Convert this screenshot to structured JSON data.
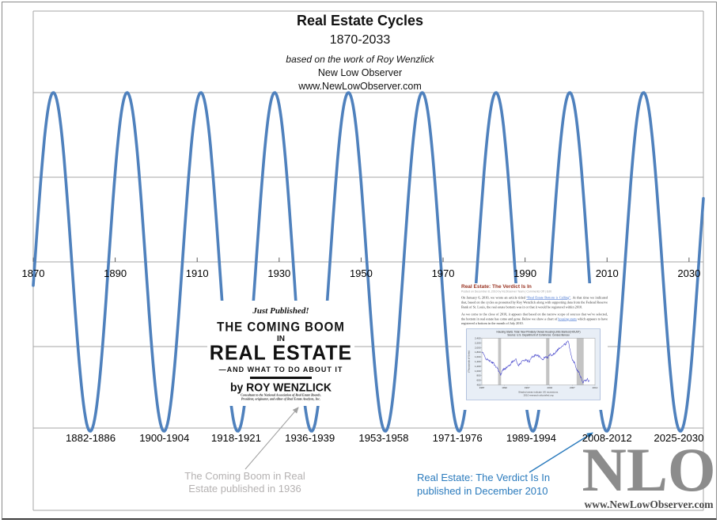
{
  "header": {
    "title": "Real Estate Cycles",
    "subtitle": "1870-2033",
    "attribution": "based on the work of Roy Wenzlick",
    "site_name": "New Low Observer",
    "site_url": "www.NewLowObserver.com"
  },
  "chart_data": [
    {
      "type": "line",
      "title": "Real Estate Cycles 1870-2033",
      "description": "Idealized ~18-year real estate cycle drawn as a sine wave",
      "x_range": [
        1870,
        2033.5
      ],
      "y_range": [
        -1.5,
        1.5
      ],
      "grid": "horizontal gridlines every 0.5, no vertical gridlines",
      "legend_position": "none",
      "wave": {
        "shape": "sine",
        "period_years": 18,
        "amplitude": 1,
        "upward_zero_crossing_year": 1870.4
      },
      "x_ticks": [
        "1870",
        "1890",
        "1910",
        "1930",
        "1950",
        "1970",
        "1990",
        "2010",
        "2030"
      ],
      "trough_labels": [
        "1882-1886",
        "1900-1904",
        "1918-1921",
        "1936-1939",
        "1953-1958",
        "1971-1976",
        "1989-1994",
        "2008-2012",
        "2025-2030"
      ],
      "trough_center_years": [
        1884,
        1902,
        1919.5,
        1937.5,
        1955.5,
        1973.5,
        1991.5,
        2010,
        2027.5
      ],
      "line_color": "#4f81bd"
    },
    {
      "type": "line",
      "title": "Housing Starts: Total: New Privately Owned Housing Units Started (HOUST)",
      "subtitle": "Source: U.S. Department of Commerce: Census Bureau",
      "ylabel": "(Thousands of Units)",
      "ylim": [
        400,
        2400
      ],
      "y_tick_step": 200,
      "x_ticks": [
        1987,
        1992,
        1997,
        2002,
        2007,
        2012
      ],
      "x": [
        1987,
        1987.5,
        1988,
        1988.5,
        1989,
        1989.5,
        1990,
        1990.5,
        1991.17,
        1991.5,
        1992,
        1993,
        1994,
        1994.5,
        1995,
        1995.5,
        1996,
        1996.5,
        1997,
        1997.5,
        1998,
        1998.5,
        1999,
        1999.5,
        2000,
        2000.5,
        2001,
        2001.5,
        2002,
        2002.5,
        2003,
        2003.5,
        2004,
        2004.5,
        2005,
        2005.5,
        2006.08,
        2006.5,
        2007,
        2007.5,
        2008,
        2008.5,
        2009.33,
        2009.67,
        2010,
        2010.33,
        2010.58,
        2010.83
      ],
      "values": [
        1820,
        1680,
        1490,
        1470,
        1380,
        1340,
        1210,
        1110,
        800,
        1010,
        1100,
        1210,
        1450,
        1510,
        1240,
        1300,
        1450,
        1470,
        1440,
        1400,
        1580,
        1640,
        1700,
        1640,
        1550,
        1500,
        1600,
        1570,
        1700,
        1680,
        1750,
        1850,
        1960,
        2000,
        2100,
        2160,
        2270,
        1900,
        1450,
        1350,
        1050,
        940,
        480,
        590,
        610,
        680,
        540,
        590
      ],
      "recessions": [
        [
          1990.6,
          1991.25
        ],
        [
          2001.2,
          2001.92
        ],
        [
          2007.95,
          2009.5
        ]
      ],
      "caption_line1": "Shaded areas indicate US recessions.",
      "caption_line2": "2010 research.stlouisfed.org",
      "line_color": "#3b3bc8",
      "legend_position": "none"
    }
  ],
  "ad_overlay": {
    "just_published": "Just Published!",
    "line1": "THE COMING BOOM",
    "line2": "IN",
    "line3": "REAL ESTATE",
    "line4": "—AND WHAT TO DO ABOUT IT",
    "byline": "by ROY WENZLICK",
    "fine_print_1": "Consultant to the National Association of Real Estate Boards.",
    "fine_print_2": "President, originator, and editor of Real Estate Analysts, Inc."
  },
  "article_overlay": {
    "title": "Real Estate:  The Verdict Is In",
    "meta": "Posted on December 8, 2010 by NLObserver Team | Comments Off | Edit",
    "para1": {
      "pre": "On January 6, 2010, we wrote an article titled ",
      "link": "“Real Estate Bottom is Calling”",
      "post": ". At that time we indicated that, based on the cycles as presented by Roy Wenzlick along with supporting data from the Federal Reserve Bank of St. Louis, the real estate bottom was in or that it would be registered within 2010."
    },
    "para2": {
      "pre": "As we come to the close of 2010, it appears that based on the narrow scope of sources that we've selected, the bottom in real estate has come and gone. Below we show a chart of ",
      "link": "housing starts",
      "post": " which appears to have registered a bottom in the month of July 2010."
    }
  },
  "annotations": {
    "coming_boom": {
      "line1": "The Coming Boom in Real",
      "line2": "Estate published in 1936",
      "color": "#b5b2b2"
    },
    "verdict": {
      "line1": "Real Estate:  The Verdict Is In",
      "line2": "published in December 2010",
      "color": "#2b7bbd"
    }
  },
  "logo": {
    "text": "NLO",
    "url": "www.NewLowObserver.com"
  }
}
